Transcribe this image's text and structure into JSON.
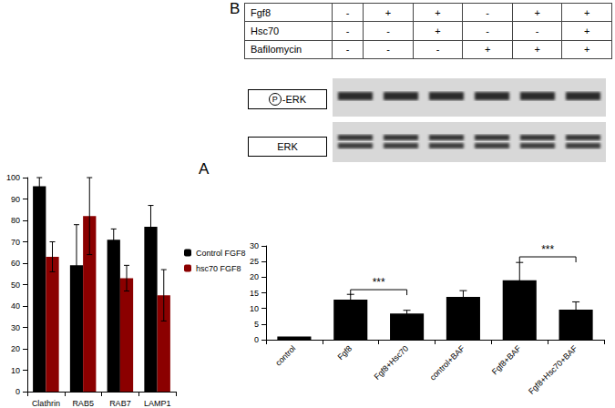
{
  "panel_labels": [
    "A",
    "B"
  ],
  "chart_data": [
    {
      "type": "bar",
      "categories": [
        "Clathrin",
        "RAB5",
        "RAB7",
        "LAMP1"
      ],
      "series": [
        {
          "name": "Control FGF8",
          "color": "#000000",
          "values": [
            96,
            59,
            71,
            77
          ],
          "errors": [
            4,
            19,
            5,
            10
          ]
        },
        {
          "name": "hsc70 FGF8",
          "color": "#8b0000",
          "values": [
            63,
            82,
            53,
            45
          ],
          "errors": [
            7,
            18,
            6,
            12
          ]
        }
      ],
      "ylim": [
        0,
        100
      ],
      "yticks": [
        0,
        10,
        20,
        30,
        40,
        50,
        60,
        70,
        80,
        90,
        100
      ],
      "grid": false,
      "legend": "right"
    },
    {
      "type": "bar",
      "categories": [
        "control",
        "Fgf8",
        "Fgf8+Hsc70",
        "control+BAF",
        "Fgf8+BAF",
        "Fgf8+Hsc70+BAF"
      ],
      "values": [
        1,
        12.8,
        8.4,
        13.7,
        19,
        9.6
      ],
      "errors": [
        null,
        1.7,
        1,
        2,
        5.7,
        2.5
      ],
      "color": "#000000",
      "ylim": [
        0,
        30
      ],
      "yticks": [
        0,
        5,
        10,
        15,
        20,
        25,
        30
      ],
      "grid": false,
      "annotations": [
        {
          "text": "***",
          "from": "Fgf8",
          "to": "Fgf8+Hsc70",
          "y": 16
        },
        {
          "text": "***",
          "from": "Fgf8+BAF",
          "to": "Fgf8+Hsc70+BAF",
          "y": 26.5
        }
      ]
    }
  ],
  "treatment_table": {
    "rows": [
      {
        "label": "Fgf8",
        "cells": [
          "-",
          "+",
          "+",
          "-",
          "+",
          "+"
        ]
      },
      {
        "label": "Hsc70",
        "cells": [
          "-",
          "-",
          "+",
          "-",
          "-",
          "+"
        ]
      },
      {
        "label": "Bafilomycin",
        "cells": [
          "-",
          "-",
          "-",
          "+",
          "+",
          "+"
        ]
      }
    ]
  },
  "blot": {
    "rows": [
      {
        "mark": "P",
        "label": "-ERK"
      },
      {
        "label": "ERK"
      }
    ]
  }
}
